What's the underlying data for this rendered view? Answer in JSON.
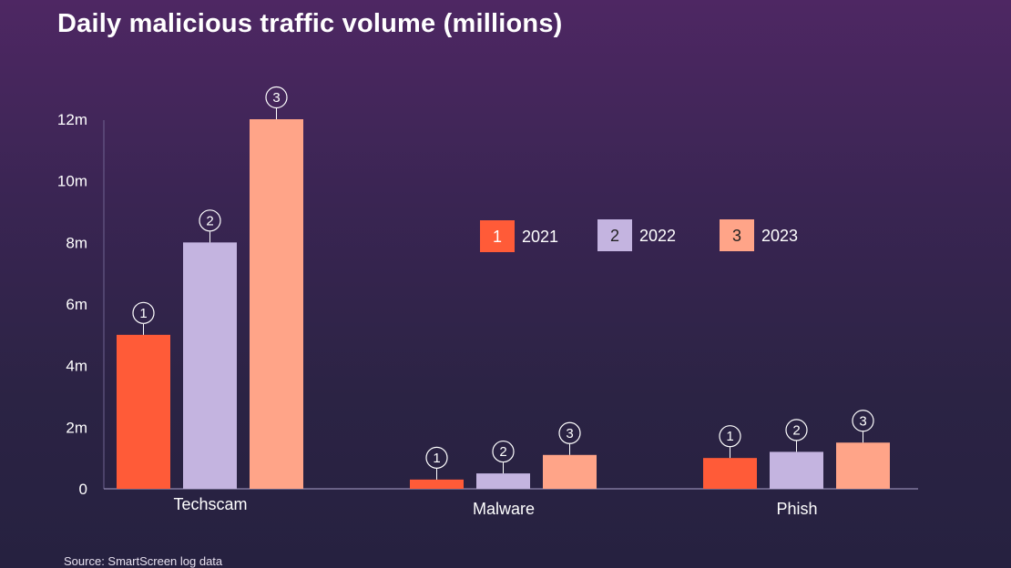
{
  "title": "Daily malicious traffic volume (millions)",
  "source": "Source: SmartScreen log data",
  "colors": {
    "2021": "#ff5b38",
    "2022": "#c4b4e0",
    "2023": "#ffa488"
  },
  "chart_data": {
    "type": "bar",
    "title": "Daily malicious traffic volume (millions)",
    "xlabel": "",
    "ylabel": "",
    "categories": [
      "Techscam",
      "Malware",
      "Phish"
    ],
    "y_ticks": [
      "0",
      "2m",
      "4m",
      "6m",
      "8m",
      "10m",
      "12m"
    ],
    "ylim": [
      0,
      12
    ],
    "grid": false,
    "legend_position": "upper-right",
    "series": [
      {
        "name": "2021",
        "marker": "1",
        "values": [
          5.0,
          0.3,
          1.0
        ]
      },
      {
        "name": "2022",
        "marker": "2",
        "values": [
          8.0,
          0.5,
          1.2
        ]
      },
      {
        "name": "2023",
        "marker": "3",
        "values": [
          12.0,
          1.1,
          1.5
        ]
      }
    ]
  }
}
